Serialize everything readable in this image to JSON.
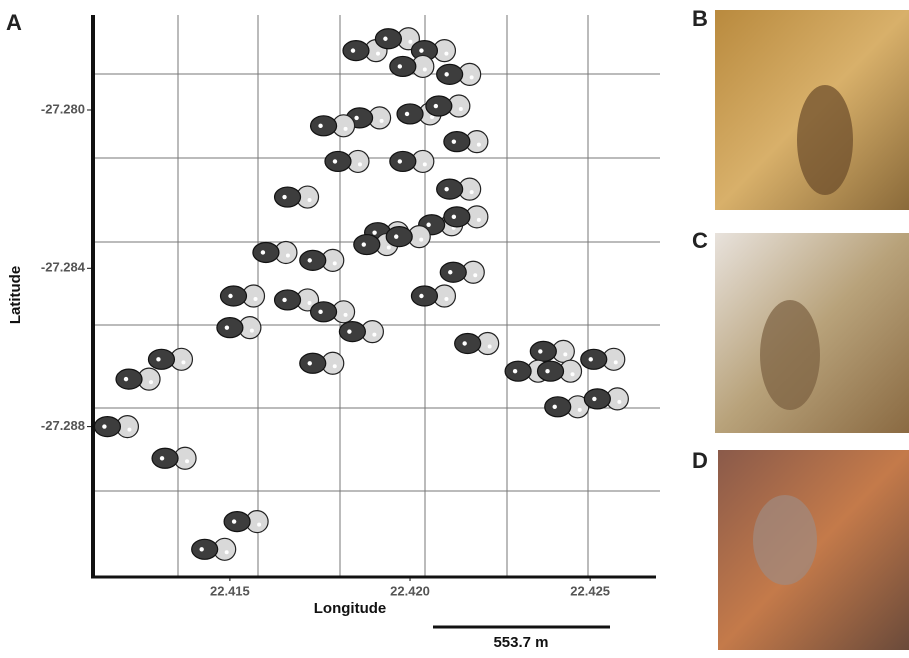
{
  "chart_data": {
    "type": "scatter",
    "x_label": "Longitude",
    "y_label": "Latitude",
    "x": [
      22.4185,
      22.4194,
      22.4204,
      22.4198,
      22.4211,
      22.4186,
      22.4176,
      22.42,
      22.4208,
      22.4213,
      22.418,
      22.4198,
      22.4166,
      22.4211,
      22.4206,
      22.4213,
      22.4191,
      22.4188,
      22.4197,
      22.416,
      22.4173,
      22.4212,
      22.4151,
      22.4166,
      22.4176,
      22.4184,
      22.4204,
      22.415,
      22.4131,
      22.4122,
      22.4173,
      22.4216,
      22.4237,
      22.423,
      22.4239,
      22.4251,
      22.4241,
      22.4252,
      22.4116,
      22.4132,
      22.4152,
      22.4143
    ],
    "values": [
      -27.2785,
      -27.2782,
      -27.2785,
      -27.2789,
      -27.2791,
      -27.2802,
      -27.2804,
      -27.2801,
      -27.2799,
      -27.2808,
      -27.2813,
      -27.2813,
      -27.2822,
      -27.282,
      -27.2829,
      -27.2827,
      -27.2831,
      -27.2834,
      -27.2832,
      -27.2836,
      -27.2838,
      -27.2841,
      -27.2847,
      -27.2848,
      -27.2851,
      -27.2856,
      -27.2847,
      -27.2855,
      -27.2863,
      -27.2868,
      -27.2864,
      -27.2859,
      -27.2861,
      -27.2866,
      -27.2866,
      -27.2863,
      -27.2875,
      -27.2873,
      -27.288,
      -27.2888,
      -27.2904,
      -27.2911
    ],
    "colors": [
      "#3d3d3d",
      "#d9d9d9"
    ],
    "xlim": [
      22.4112,
      22.4268
    ],
    "ylim": [
      -27.2918,
      -27.2776
    ],
    "xticks": [
      22.415,
      {
        "value": 22.42,
        "label": "22.420"
      },
      22.425
    ],
    "yticks": [
      {
        "value": -27.28,
        "label": "-27.280"
      },
      -27.284,
      -27.288
    ],
    "scale_bar": "553.7 m",
    "panel_labels": [
      "A",
      "B",
      "C",
      "D"
    ]
  }
}
